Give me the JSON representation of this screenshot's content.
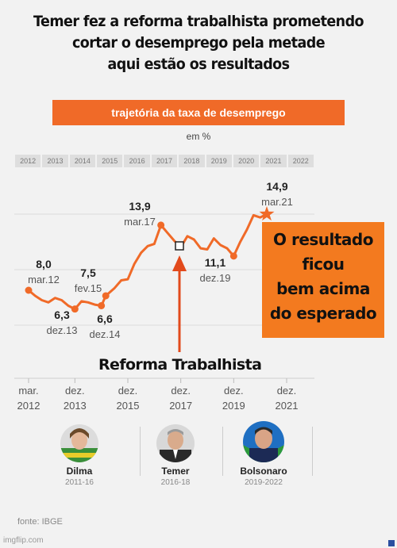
{
  "meme": {
    "title_lines": [
      "Temer fez a reforma trabalhista prometendo",
      "cortar o desemprego pela metade",
      "aqui estão os resultados"
    ],
    "callout_lines": [
      "O resultado",
      "ficou",
      "bem acima",
      "do esperado"
    ],
    "reform_label": "Reforma Trabalhista"
  },
  "chart_data": {
    "type": "line",
    "title": "trajetória da taxa de desemprego",
    "unit": "em %",
    "color": "#f06a28",
    "year_labels": [
      "2012",
      "2013",
      "2014",
      "2015",
      "2016",
      "2017",
      "2018",
      "2019",
      "2020",
      "2021",
      "2022"
    ],
    "x_ticks": [
      {
        "date": "2012-03",
        "line1": "mar.",
        "line2": "2012"
      },
      {
        "date": "2013-12",
        "line1": "dez.",
        "line2": "2013"
      },
      {
        "date": "2015-12",
        "line1": "dez.",
        "line2": "2015"
      },
      {
        "date": "2017-12",
        "line1": "dez.",
        "line2": "2017"
      },
      {
        "date": "2019-12",
        "line1": "dez.",
        "line2": "2019"
      },
      {
        "date": "2021-12",
        "line1": "dez.",
        "line2": "2021"
      }
    ],
    "ylim": [
      5,
      16
    ],
    "annotations": [
      {
        "date": "2012-03",
        "value": "8,0",
        "label": "mar.12"
      },
      {
        "date": "2013-12",
        "value": "6,3",
        "label": "dez.13"
      },
      {
        "date": "2015-02",
        "value": "7,5",
        "label": "fev.15"
      },
      {
        "date": "2014-12",
        "value": "6,6",
        "label": "dez.14"
      },
      {
        "date": "2017-03",
        "value": "13,9",
        "label": "mar.17"
      },
      {
        "date": "2019-12",
        "value": "11,1",
        "label": "dez.19"
      },
      {
        "date": "2021-03",
        "value": "14,9",
        "label": "mar.21"
      }
    ],
    "series": [
      {
        "x": [
          "2012-03",
          "2012-06",
          "2012-09",
          "2012-12",
          "2013-03",
          "2013-06",
          "2013-09",
          "2013-12",
          "2014-03",
          "2014-06",
          "2014-09",
          "2014-12",
          "2015-02",
          "2015-06",
          "2015-09",
          "2015-12",
          "2016-03",
          "2016-06",
          "2016-09",
          "2016-12",
          "2017-03",
          "2017-06",
          "2017-09",
          "2017-12",
          "2018-03",
          "2018-06",
          "2018-09",
          "2018-12",
          "2019-03",
          "2019-06",
          "2019-09",
          "2019-12",
          "2020-03",
          "2020-06",
          "2020-09",
          "2020-12",
          "2021-03"
        ],
        "values": [
          8.0,
          7.5,
          7.1,
          6.9,
          7.3,
          7.1,
          6.6,
          6.3,
          7.0,
          6.9,
          6.7,
          6.6,
          7.5,
          8.2,
          8.9,
          9.0,
          10.4,
          11.4,
          12.0,
          12.2,
          13.9,
          13.2,
          12.5,
          11.9,
          12.9,
          12.6,
          11.8,
          11.7,
          12.7,
          12.1,
          11.8,
          11.1,
          12.4,
          13.5,
          14.8,
          14.6,
          14.9
        ]
      }
    ]
  },
  "presidents": [
    {
      "name": "Dilma",
      "years": "2011-16"
    },
    {
      "name": "Temer",
      "years": "2016-18"
    },
    {
      "name": "Bolsonaro",
      "years": "2019-2022"
    }
  ],
  "footer": {
    "source": "fonte: IBGE",
    "watermark": "imgflip.com"
  }
}
